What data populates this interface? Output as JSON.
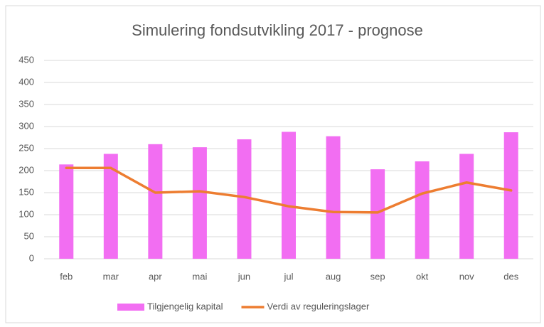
{
  "chart_data": {
    "type": "bar",
    "title": "Simulering fondsutvikling 2017 - prognose",
    "categories": [
      "feb",
      "mar",
      "apr",
      "mai",
      "jun",
      "jul",
      "aug",
      "sep",
      "okt",
      "nov",
      "des"
    ],
    "series": [
      {
        "name": "Tilgjengelig kapital",
        "type": "bar",
        "color": "#f26ef2",
        "values": [
          214,
          238,
          260,
          253,
          271,
          288,
          278,
          203,
          221,
          238,
          287
        ]
      },
      {
        "name": "Verdi av reguleringslager",
        "type": "line",
        "color": "#ed7d31",
        "values": [
          206,
          206,
          150,
          153,
          140,
          119,
          106,
          105,
          148,
          173,
          155
        ]
      }
    ],
    "ylim": [
      0,
      450
    ],
    "yticks": [
      0,
      50,
      100,
      150,
      200,
      250,
      300,
      350,
      400,
      450
    ],
    "grid": true,
    "legend": "bottom"
  }
}
